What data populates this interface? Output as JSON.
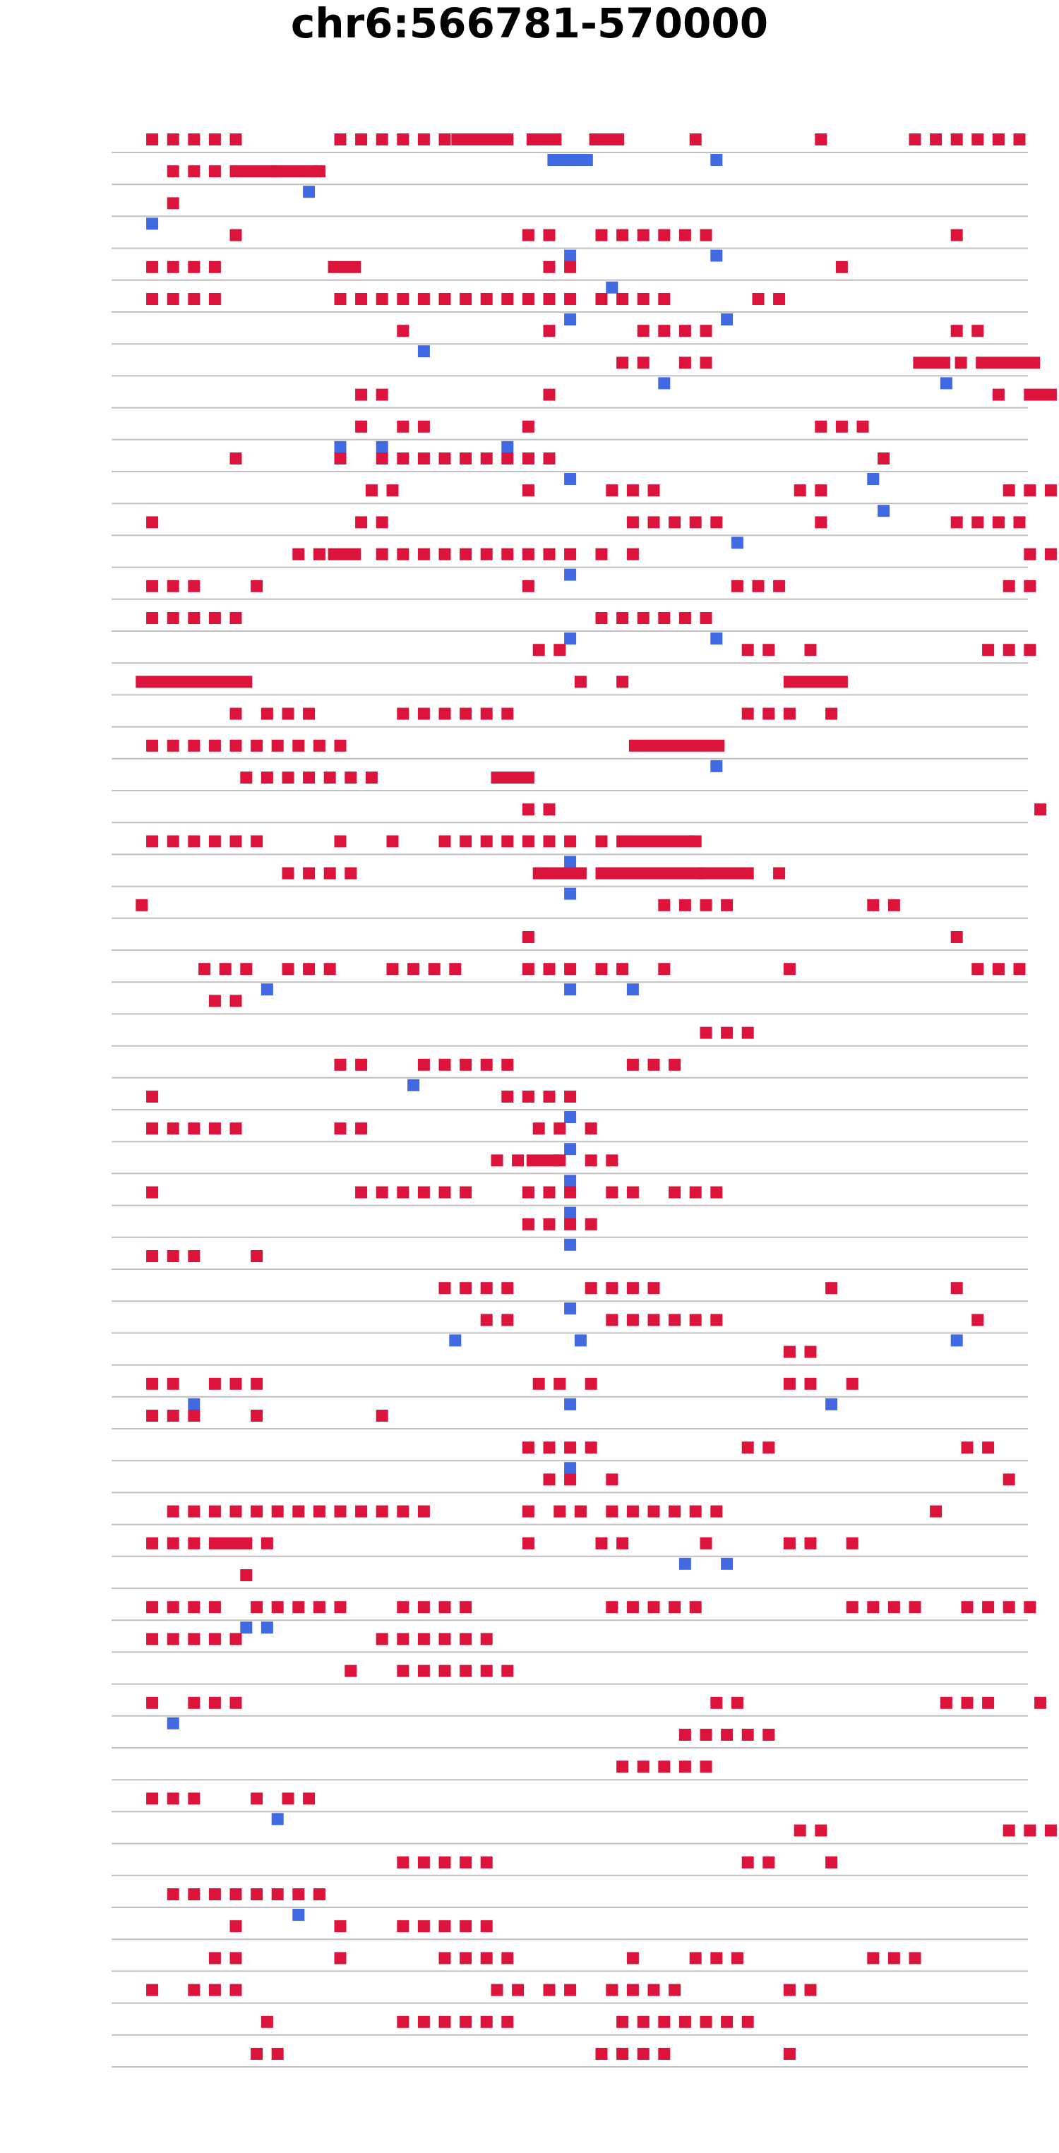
{
  "chart_data": {
    "type": "genome-track",
    "title": "chr6:566781-570000",
    "region": {
      "chrom": "chr6",
      "start": 566781,
      "end": 570000
    },
    "xlim": [
      0,
      44
    ],
    "colors": {
      "forward": "#dc143c",
      "reverse": "#4169e1",
      "line": "#c0c0c0"
    },
    "note": "x values in marker-column units (1 unit ~ 72.8 bp); each read row lists forward (red) and reverse (blue) marker positions, [start,end] for spans",
    "rows": [
      {
        "f": [
          1,
          2,
          3,
          4,
          5,
          10,
          11,
          12,
          13,
          14,
          15,
          [
            15.6,
            17.7
          ],
          18,
          [
            19.2,
            20.3
          ],
          [
            22.2,
            23.3
          ],
          27,
          33,
          37.5,
          38.5,
          39.5,
          40.5,
          41.5,
          42.5
        ],
        "r": [
          [
            20.2,
            21.8
          ],
          28
        ]
      },
      {
        "f": [
          2,
          3,
          4,
          [
            5,
            6.7
          ],
          [
            7,
            8.6
          ],
          9
        ],
        "r": [
          8.5
        ]
      },
      {
        "f": [
          2
        ],
        "r": [
          1
        ]
      },
      {
        "f": [
          5,
          19,
          20,
          22.5,
          23.5,
          24.5,
          25.5,
          26.5,
          27.5,
          39.5
        ],
        "r": [
          21,
          28
        ]
      },
      {
        "f": [
          1,
          2,
          3,
          4,
          [
            9.7,
            10.7
          ],
          20,
          21,
          34
        ],
        "r": [
          23
        ]
      },
      {
        "f": [
          1,
          2,
          3,
          4,
          10,
          11,
          12,
          13,
          14,
          15,
          16,
          17,
          18,
          19,
          20,
          21,
          22.5,
          23.5,
          24.5,
          25.5,
          30,
          31
        ],
        "r": [
          21,
          28.5
        ]
      },
      {
        "f": [
          13,
          20,
          24.5,
          25.5,
          26.5,
          27.5,
          39.5,
          40.5
        ],
        "r": [
          14
        ]
      },
      {
        "f": [
          23.5,
          24.5,
          26.5,
          27.5,
          [
            37.7,
            38.9
          ],
          39.7,
          [
            40.7,
            43.2
          ]
        ],
        "r": [
          25.5,
          39
        ]
      },
      {
        "f": [
          11,
          12,
          20,
          41.5,
          [
            43,
            44
          ]
        ],
        "r": []
      },
      {
        "f": [
          11,
          13,
          14,
          19,
          33,
          34,
          35
        ],
        "r": [
          10,
          12,
          18
        ]
      },
      {
        "f": [
          5,
          10,
          12,
          13,
          14,
          15,
          16,
          17,
          18,
          19,
          20,
          36
        ],
        "r": [
          21,
          35.5
        ]
      },
      {
        "f": [
          11.5,
          12.5,
          19,
          23,
          24,
          25,
          32,
          33,
          42,
          43,
          44
        ],
        "r": [
          36
        ]
      },
      {
        "f": [
          1,
          11,
          12,
          24,
          25,
          26,
          27,
          28,
          33,
          39.5,
          40.5,
          41.5,
          42.5
        ],
        "r": [
          29
        ]
      },
      {
        "f": [
          8,
          9,
          [
            9.7,
            10.7
          ],
          12,
          13,
          14,
          15,
          16,
          17,
          18,
          19,
          20,
          21,
          22.5,
          24,
          43,
          44
        ],
        "r": [
          21
        ]
      },
      {
        "f": [
          1,
          2,
          3,
          6,
          19,
          29,
          30,
          31,
          42,
          43
        ],
        "r": []
      },
      {
        "f": [
          1,
          2,
          3,
          4,
          5,
          22.5,
          23.5,
          24.5,
          25.5,
          26.5,
          27.5
        ],
        "r": [
          21,
          28
        ]
      },
      {
        "f": [
          19.5,
          20.5,
          29.5,
          30.5,
          32.5,
          41,
          42,
          43
        ],
        "r": []
      },
      {
        "f": [
          [
            0.5,
            5.5
          ],
          21.5,
          23.5,
          [
            31.5,
            34
          ]
        ],
        "r": []
      },
      {
        "f": [
          5,
          6.5,
          7.5,
          8.5,
          13,
          14,
          15,
          16,
          17,
          18,
          29.5,
          30.5,
          31.5,
          33.5
        ],
        "r": []
      },
      {
        "f": [
          1,
          2,
          3,
          4,
          5,
          6,
          7,
          8,
          9,
          10,
          [
            24.1,
            28.1
          ]
        ],
        "r": [
          28
        ]
      },
      {
        "f": [
          5.5,
          6.5,
          7.5,
          8.5,
          9.5,
          10.5,
          11.5,
          [
            17.5,
            19
          ]
        ],
        "r": []
      },
      {
        "f": [
          19,
          20,
          43.5
        ],
        "r": []
      },
      {
        "f": [
          1,
          2,
          3,
          4,
          5,
          6,
          10,
          12.5,
          15,
          16,
          17,
          18,
          19,
          20,
          21,
          22.5,
          [
            23.5,
            26.5
          ],
          27
        ],
        "r": [
          21
        ]
      },
      {
        "f": [
          7.5,
          8.5,
          9.5,
          10.5,
          [
            19.5,
            21.5
          ],
          [
            22.5,
            27.1
          ],
          [
            27.4,
            29.5
          ],
          31
        ],
        "r": [
          21
        ]
      },
      {
        "f": [
          0.5,
          25.5,
          26.5,
          27.5,
          28.5,
          35.5,
          36.5
        ],
        "r": []
      },
      {
        "f": [
          19,
          39.5
        ],
        "r": []
      },
      {
        "f": [
          3.5,
          4.5,
          5.5,
          7.5,
          8.5,
          9.5,
          12.5,
          13.5,
          14.5,
          15.5,
          19,
          20,
          21,
          22.5,
          23.5,
          25.5,
          31.5,
          40.5,
          41.5,
          42.5
        ],
        "r": [
          6.5,
          21,
          24
        ]
      },
      {
        "f": [
          4,
          5
        ],
        "r": []
      },
      {
        "f": [
          27.5,
          28.5,
          29.5
        ],
        "r": []
      },
      {
        "f": [
          10,
          11,
          14,
          15,
          16,
          17,
          18,
          24,
          25,
          26
        ],
        "r": [
          13.5
        ]
      },
      {
        "f": [
          1,
          18,
          19,
          20,
          21
        ],
        "r": [
          21
        ]
      },
      {
        "f": [
          1,
          2,
          3,
          4,
          5,
          10,
          11,
          19.5,
          20.5,
          22
        ],
        "r": [
          21
        ]
      },
      {
        "f": [
          17.5,
          18.5,
          [
            19.2,
            20.3
          ],
          20.5,
          22,
          23
        ],
        "r": [
          21
        ]
      },
      {
        "f": [
          1,
          11,
          12,
          13,
          14,
          15,
          16,
          19,
          20,
          21,
          23,
          24,
          26,
          27,
          28
        ],
        "r": [
          21
        ]
      },
      {
        "f": [
          19,
          20,
          21,
          22
        ],
        "r": [
          21
        ]
      },
      {
        "f": [
          1,
          2,
          3,
          6
        ],
        "r": []
      },
      {
        "f": [
          15,
          16,
          17,
          18,
          22,
          23,
          24,
          25,
          33.5,
          39.5
        ],
        "r": [
          21
        ]
      },
      {
        "f": [
          17,
          18,
          23,
          24,
          25,
          26,
          27,
          28,
          40.5
        ],
        "r": [
          15.5,
          21.5,
          39.5
        ]
      },
      {
        "f": [
          31.5,
          32.5
        ],
        "r": []
      },
      {
        "f": [
          1,
          2,
          4,
          5,
          6,
          19.5,
          20.5,
          22,
          31.5,
          32.5,
          34.5
        ],
        "r": [
          3,
          21,
          33.5
        ]
      },
      {
        "f": [
          1,
          2,
          3,
          6,
          12
        ],
        "r": []
      },
      {
        "f": [
          19,
          20,
          21,
          22,
          29.5,
          30.5,
          40,
          41
        ],
        "r": [
          21
        ]
      },
      {
        "f": [
          20,
          21,
          23,
          42
        ],
        "r": []
      },
      {
        "f": [
          2,
          3,
          4,
          5,
          6,
          7,
          8,
          9,
          10,
          11,
          12,
          13,
          14,
          19,
          20.5,
          21.5,
          23,
          24,
          25,
          26,
          27,
          28,
          38.5
        ],
        "r": []
      },
      {
        "f": [
          1,
          2,
          3,
          [
            4,
            5
          ],
          5.5,
          6.5,
          19,
          22.5,
          23.5,
          27.5,
          31.5,
          32.5,
          34.5
        ],
        "r": [
          26.5,
          28.5
        ]
      },
      {
        "f": [
          5.5
        ],
        "r": []
      },
      {
        "f": [
          1,
          2,
          3,
          4,
          6,
          7,
          8,
          9,
          10,
          13,
          14,
          15,
          16,
          23,
          24,
          25,
          26,
          27,
          34.5,
          35.5,
          36.5,
          37.5,
          40,
          41,
          42,
          43
        ],
        "r": [
          5.5,
          6.5
        ]
      },
      {
        "f": [
          1,
          2,
          3,
          4,
          5,
          12,
          13,
          14,
          15,
          16,
          17
        ],
        "r": []
      },
      {
        "f": [
          10.5,
          13,
          14,
          15,
          16,
          17,
          18
        ],
        "r": []
      },
      {
        "f": [
          1,
          3,
          4,
          5,
          28,
          29,
          39,
          40,
          41,
          43.5
        ],
        "r": [
          2
        ]
      },
      {
        "f": [
          26.5,
          27.5,
          28.5,
          29.5,
          30.5
        ],
        "r": []
      },
      {
        "f": [
          23.5,
          24.5,
          25.5,
          26.5,
          27.5
        ],
        "r": []
      },
      {
        "f": [
          1,
          2,
          3,
          6,
          7.5,
          8.5
        ],
        "r": [
          7
        ]
      },
      {
        "f": [
          32,
          33,
          42,
          43,
          44
        ],
        "r": []
      },
      {
        "f": [
          13,
          14,
          15,
          16,
          17,
          29.5,
          30.5,
          33.5
        ],
        "r": []
      },
      {
        "f": [
          2,
          3,
          4,
          5,
          6,
          7,
          8,
          9
        ],
        "r": [
          8
        ]
      },
      {
        "f": [
          5,
          10,
          13,
          14,
          15,
          16,
          17
        ],
        "r": []
      },
      {
        "f": [
          4,
          5,
          10,
          15,
          16,
          17,
          18,
          24,
          27,
          28,
          29,
          35.5,
          36.5,
          37.5
        ],
        "r": []
      },
      {
        "f": [
          1,
          3,
          4,
          5,
          17.5,
          18.5,
          20,
          21,
          23,
          24,
          25,
          26,
          31.5,
          32.5
        ],
        "r": []
      },
      {
        "f": [
          6.5,
          13,
          14,
          15,
          16,
          17,
          18,
          23.5,
          24.5,
          25.5,
          26.5,
          27.5,
          28.5,
          29.5
        ],
        "r": []
      },
      {
        "f": [
          6,
          7,
          22.5,
          23.5,
          24.5,
          25.5,
          31.5
        ],
        "r": []
      }
    ]
  }
}
